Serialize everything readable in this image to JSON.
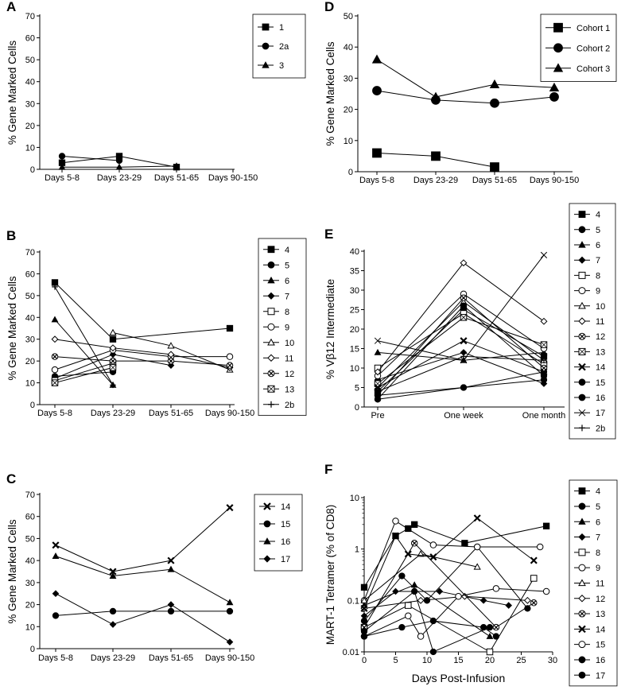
{
  "chart_data": [
    {
      "panel": "A",
      "type": "line",
      "ylabel": "% Gene Marked Cells",
      "categories": [
        "Days 5-8",
        "Days 23-29",
        "Days 51-65",
        "Days 90-150"
      ],
      "yticks": [
        0,
        10,
        20,
        30,
        40,
        50,
        60,
        70
      ],
      "ylim": [
        0,
        70
      ],
      "legend": "top-right",
      "series": [
        {
          "name": "1",
          "marker": "square",
          "values": [
            3,
            6,
            1,
            null
          ]
        },
        {
          "name": "2a",
          "marker": "circle",
          "values": [
            6,
            4,
            null,
            null
          ]
        },
        {
          "name": "3",
          "marker": "triangle",
          "values": [
            1,
            1,
            1.5,
            null
          ]
        }
      ]
    },
    {
      "panel": "B",
      "type": "line",
      "ylabel": "% Gene Marked Cells",
      "categories": [
        "Days 5-8",
        "Days 23-29",
        "Days 51-65",
        "Days 90-150"
      ],
      "yticks": [
        0,
        10,
        20,
        30,
        40,
        50,
        60,
        70
      ],
      "ylim": [
        0,
        70
      ],
      "legend": "right",
      "series": [
        {
          "name": "4",
          "marker": "square",
          "values": [
            56,
            30,
            null,
            35
          ]
        },
        {
          "name": "5",
          "marker": "circle",
          "values": [
            13,
            15,
            null,
            null
          ]
        },
        {
          "name": "6",
          "marker": "triangle",
          "values": [
            39,
            9,
            null,
            null
          ]
        },
        {
          "name": "7",
          "marker": "diamond",
          "values": [
            12,
            23,
            18,
            null
          ]
        },
        {
          "name": "8",
          "marker": "open-square",
          "values": [
            11,
            19,
            null,
            null
          ]
        },
        {
          "name": "9",
          "marker": "open-circle",
          "values": [
            16,
            25,
            22,
            22
          ]
        },
        {
          "name": "10",
          "marker": "open-triangle",
          "values": [
            null,
            33,
            27,
            16
          ]
        },
        {
          "name": "11",
          "marker": "open-diamond",
          "values": [
            30,
            26,
            23,
            17
          ]
        },
        {
          "name": "12",
          "marker": "circle-x",
          "values": [
            22,
            20,
            20,
            18
          ]
        },
        {
          "name": "13",
          "marker": "square-x",
          "values": [
            10,
            17,
            null,
            null
          ]
        },
        {
          "name": "2b",
          "marker": "plus",
          "values": [
            54,
            9,
            null,
            null
          ]
        }
      ]
    },
    {
      "panel": "C",
      "type": "line",
      "ylabel": "% Gene Marked Cells",
      "categories": [
        "Days 5-8",
        "Days 23-29",
        "Days 51-65",
        "Days 90-150"
      ],
      "yticks": [
        0,
        10,
        20,
        30,
        40,
        50,
        60,
        70
      ],
      "ylim": [
        0,
        70
      ],
      "legend": "right",
      "series": [
        {
          "name": "14",
          "marker": "x",
          "values": [
            47,
            35,
            40,
            64
          ]
        },
        {
          "name": "15",
          "marker": "circle",
          "values": [
            15,
            17,
            17,
            17
          ]
        },
        {
          "name": "16",
          "marker": "triangle",
          "values": [
            42,
            33,
            36,
            21
          ]
        },
        {
          "name": "17",
          "marker": "diamond",
          "values": [
            25,
            11,
            20,
            3
          ]
        }
      ]
    },
    {
      "panel": "D",
      "type": "line",
      "ylabel": "% Gene Marked Cells",
      "categories": [
        "Days 5-8",
        "Days 23-29",
        "Days 51-65",
        "Days 90-150"
      ],
      "yticks": [
        0,
        10,
        20,
        30,
        40,
        50
      ],
      "ylim": [
        0,
        50
      ],
      "legend": "top-right",
      "series": [
        {
          "name": "Cohort 1",
          "marker": "square",
          "values": [
            6,
            5,
            1.5,
            null
          ]
        },
        {
          "name": "Cohort 2",
          "marker": "circle",
          "values": [
            26,
            23,
            22,
            24
          ]
        },
        {
          "name": "Cohort 3",
          "marker": "triangle",
          "values": [
            36,
            24,
            28,
            27
          ]
        }
      ]
    },
    {
      "panel": "E",
      "type": "line",
      "ylabel": "% Vβ12 Intermediate",
      "categories": [
        "Pre",
        "One week",
        "One month"
      ],
      "yticks": [
        0,
        5,
        10,
        15,
        20,
        25,
        30,
        35,
        40
      ],
      "ylim": [
        0,
        40
      ],
      "legend": "right",
      "series": [
        {
          "name": "4",
          "marker": "square",
          "values": [
            4,
            25,
            13
          ]
        },
        {
          "name": "5",
          "marker": "circle",
          "values": [
            2,
            5,
            9
          ]
        },
        {
          "name": "6",
          "marker": "triangle",
          "values": [
            14,
            12,
            14
          ]
        },
        {
          "name": "7",
          "marker": "diamond",
          "values": [
            7,
            14,
            6
          ]
        },
        {
          "name": "8",
          "marker": "open-square",
          "values": [
            10,
            24,
            11
          ]
        },
        {
          "name": "9",
          "marker": "open-circle",
          "values": [
            8,
            29,
            15
          ]
        },
        {
          "name": "10",
          "marker": "open-triangle",
          "values": [
            5,
            27,
            12
          ]
        },
        {
          "name": "11",
          "marker": "open-diamond",
          "values": [
            9,
            37,
            22
          ]
        },
        {
          "name": "12",
          "marker": "circle-x",
          "values": [
            3,
            28,
            10
          ]
        },
        {
          "name": "13",
          "marker": "square-x",
          "values": [
            6,
            23,
            16
          ]
        },
        {
          "name": "14",
          "marker": "x",
          "values": [
            5,
            17,
            9
          ]
        },
        {
          "name": "15",
          "marker": "circle",
          "values": [
            2,
            26,
            8
          ]
        },
        {
          "name": "16",
          "marker": "circle",
          "values": [
            3,
            5,
            7
          ]
        },
        {
          "name": "17",
          "marker": "x-thin",
          "values": [
            17,
            12,
            39
          ]
        },
        {
          "name": "2b",
          "marker": "plus",
          "values": [
            4,
            13,
            12
          ]
        }
      ]
    },
    {
      "panel": "F",
      "type": "line",
      "ylabel": "MART-1 Tetramer (% of CD8)",
      "xlabel": "Days Post-Infusion",
      "yscale": "log",
      "ylim": [
        0.01,
        10
      ],
      "yticks": [
        0.01,
        0.1,
        1,
        10
      ],
      "yticklabels": [
        "0.01",
        "0.1",
        "1",
        "10"
      ],
      "xlim": [
        0,
        30
      ],
      "xticks": [
        0,
        5,
        10,
        15,
        20,
        25,
        30
      ],
      "legend": "right",
      "series": [
        {
          "name": "4",
          "marker": "square",
          "points": [
            [
              0,
              0.18
            ],
            [
              5,
              1.8
            ],
            [
              7,
              2.5
            ],
            [
              8,
              3
            ],
            [
              16,
              1.3
            ],
            [
              29,
              2.8
            ]
          ]
        },
        {
          "name": "5",
          "marker": "circle",
          "points": [
            [
              0,
              0.04
            ],
            [
              6,
              0.3
            ],
            [
              10,
              0.1
            ],
            [
              18,
              1.1
            ],
            [
              26,
              0.07
            ]
          ]
        },
        {
          "name": "6",
          "marker": "triangle",
          "points": [
            [
              0,
              0.08
            ],
            [
              8,
              0.2
            ],
            [
              20,
              0.02
            ]
          ]
        },
        {
          "name": "7",
          "marker": "diamond",
          "points": [
            [
              0,
              0.05
            ],
            [
              5,
              0.15
            ],
            [
              12,
              0.15
            ],
            [
              19,
              0.1
            ],
            [
              23,
              0.08
            ]
          ]
        },
        {
          "name": "8",
          "marker": "open-square",
          "points": [
            [
              0,
              0.03
            ],
            [
              7,
              0.08
            ],
            [
              20,
              0.01
            ],
            [
              27,
              0.27
            ]
          ]
        },
        {
          "name": "9",
          "marker": "open-circle",
          "points": [
            [
              0,
              0.1
            ],
            [
              5,
              3.5
            ],
            [
              11,
              1.2
            ],
            [
              18,
              1.1
            ],
            [
              28,
              1.1
            ]
          ]
        },
        {
          "name": "11",
          "marker": "open-triangle",
          "points": [
            [
              0,
              0.1
            ],
            [
              9,
              0.8
            ],
            [
              18,
              0.45
            ]
          ]
        },
        {
          "name": "12",
          "marker": "open-diamond",
          "points": [
            [
              0,
              0.07
            ],
            [
              9,
              0.1
            ],
            [
              16,
              0.12
            ],
            [
              26,
              0.1
            ]
          ]
        },
        {
          "name": "13",
          "marker": "circle-x",
          "points": [
            [
              0,
              0.03
            ],
            [
              8,
              1.3
            ],
            [
              21,
              0.03
            ],
            [
              27,
              0.09
            ]
          ]
        },
        {
          "name": "14",
          "marker": "x",
          "points": [
            [
              0,
              0.07
            ],
            [
              5,
              1.8
            ],
            [
              7,
              0.8
            ],
            [
              11,
              0.7
            ],
            [
              18,
              4
            ],
            [
              27,
              0.6
            ]
          ]
        },
        {
          "name": "15",
          "marker": "open-circle",
          "points": [
            [
              0,
              0.02
            ],
            [
              7,
              0.05
            ],
            [
              9,
              0.02
            ],
            [
              15,
              0.12
            ],
            [
              21,
              0.17
            ],
            [
              29,
              0.15
            ]
          ]
        },
        {
          "name": "16",
          "marker": "circle",
          "points": [
            [
              0,
              0.025
            ],
            [
              8,
              0.15
            ],
            [
              11,
              0.01
            ],
            [
              20,
              0.03
            ]
          ]
        },
        {
          "name": "17",
          "marker": "circle",
          "points": [
            [
              0,
              0.02
            ],
            [
              6,
              0.03
            ],
            [
              11,
              0.04
            ],
            [
              19,
              0.03
            ],
            [
              21,
              0.02
            ]
          ]
        }
      ]
    }
  ]
}
